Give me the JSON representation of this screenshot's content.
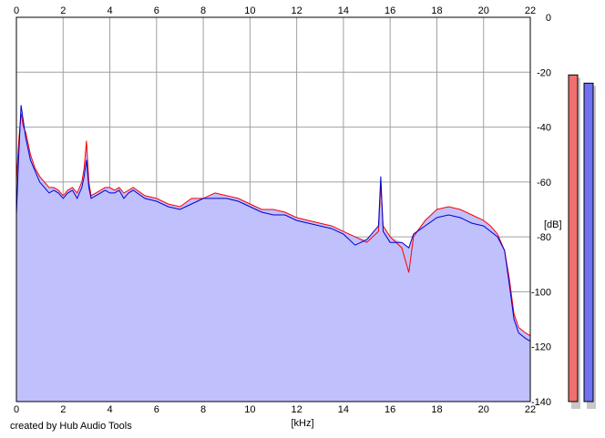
{
  "chart_data": {
    "type": "area",
    "xlabel": "[kHz]",
    "ylabel": "[dB]",
    "x_unit": "kHz",
    "y_unit": "dB",
    "xlim": [
      0,
      22
    ],
    "ylim": [
      -140,
      0
    ],
    "x_ticks": [
      0,
      2,
      4,
      6,
      8,
      10,
      12,
      14,
      16,
      18,
      20,
      22
    ],
    "y_ticks": [
      0,
      -20,
      -40,
      -60,
      -80,
      -100,
      -120,
      -140
    ],
    "y_tick_labels": [
      "0",
      "-20",
      "-40",
      "-60",
      "-80",
      "-100",
      "-120",
      "-140"
    ],
    "x_tick_labels": [
      "0",
      "2",
      "4",
      "6",
      "8",
      "10",
      "12",
      "14",
      "16",
      "18",
      "20",
      "22"
    ],
    "grid": true,
    "series": [
      {
        "color": "#ff0000",
        "x": [
          0.0,
          0.1,
          0.2,
          0.3,
          0.4,
          0.6,
          0.8,
          1.0,
          1.2,
          1.4,
          1.6,
          1.8,
          2.0,
          2.2,
          2.4,
          2.6,
          2.8,
          2.9,
          3.0,
          3.1,
          3.2,
          3.4,
          3.6,
          3.8,
          4.0,
          4.2,
          4.4,
          4.6,
          4.8,
          5.0,
          5.5,
          6.0,
          6.5,
          7.0,
          7.5,
          8.0,
          8.5,
          9.0,
          9.5,
          10.0,
          10.5,
          11.0,
          11.5,
          12.0,
          12.5,
          13.0,
          13.5,
          14.0,
          14.5,
          15.0,
          15.5,
          15.6,
          15.7,
          16.0,
          16.5,
          16.8,
          17.0,
          17.5,
          18.0,
          18.5,
          19.0,
          19.5,
          20.0,
          20.3,
          20.6,
          20.9,
          21.1,
          21.3,
          21.5,
          21.8,
          22.0
        ],
        "values": [
          -60,
          -45,
          -35,
          -40,
          -42,
          -50,
          -55,
          -58,
          -60,
          -62,
          -62,
          -63,
          -65,
          -63,
          -62,
          -64,
          -60,
          -55,
          -45,
          -60,
          -65,
          -64,
          -63,
          -62,
          -62,
          -63,
          -62,
          -64,
          -63,
          -62,
          -65,
          -66,
          -68,
          -69,
          -66,
          -66,
          -64,
          -65,
          -66,
          -68,
          -70,
          -70,
          -71,
          -73,
          -74,
          -75,
          -76,
          -78,
          -80,
          -82,
          -78,
          -60,
          -76,
          -80,
          -84,
          -93,
          -80,
          -74,
          -70,
          -69,
          -70,
          -72,
          -74,
          -76,
          -79,
          -85,
          -95,
          -108,
          -113,
          -115,
          -116
        ]
      },
      {
        "color": "#0000cc",
        "x": [
          0.0,
          0.1,
          0.2,
          0.3,
          0.4,
          0.6,
          0.8,
          1.0,
          1.2,
          1.4,
          1.6,
          1.8,
          2.0,
          2.2,
          2.4,
          2.6,
          2.8,
          2.9,
          3.0,
          3.1,
          3.2,
          3.4,
          3.6,
          3.8,
          4.0,
          4.2,
          4.4,
          4.6,
          4.8,
          5.0,
          5.5,
          6.0,
          6.5,
          7.0,
          7.5,
          8.0,
          8.5,
          9.0,
          9.5,
          10.0,
          10.5,
          11.0,
          11.5,
          12.0,
          12.5,
          13.0,
          13.5,
          14.0,
          14.5,
          15.0,
          15.5,
          15.6,
          15.7,
          16.0,
          16.5,
          16.8,
          17.0,
          17.5,
          18.0,
          18.5,
          19.0,
          19.5,
          20.0,
          20.3,
          20.6,
          20.9,
          21.1,
          21.3,
          21.5,
          21.8,
          22.0
        ],
        "values": [
          -72,
          -50,
          -32,
          -38,
          -44,
          -52,
          -56,
          -60,
          -62,
          -64,
          -63,
          -64,
          -66,
          -64,
          -63,
          -66,
          -62,
          -58,
          -52,
          -62,
          -66,
          -65,
          -64,
          -63,
          -64,
          -64,
          -63,
          -66,
          -64,
          -63,
          -66,
          -67,
          -69,
          -70,
          -68,
          -66,
          -66,
          -66,
          -67,
          -69,
          -71,
          -72,
          -72,
          -74,
          -75,
          -76,
          -77,
          -79,
          -83,
          -81,
          -76,
          -58,
          -78,
          -82,
          -82,
          -84,
          -79,
          -76,
          -73,
          -72,
          -73,
          -75,
          -76,
          -78,
          -80,
          -85,
          -97,
          -110,
          -115,
          -117,
          -118
        ]
      }
    ],
    "area_fill": "#c0c0fc",
    "level_meters": [
      {
        "color": "#f07070",
        "level_db": -21
      },
      {
        "color": "#7070f0",
        "level_db": -24
      }
    ]
  },
  "footer": {
    "credit": "created by Hub Audio Tools"
  }
}
